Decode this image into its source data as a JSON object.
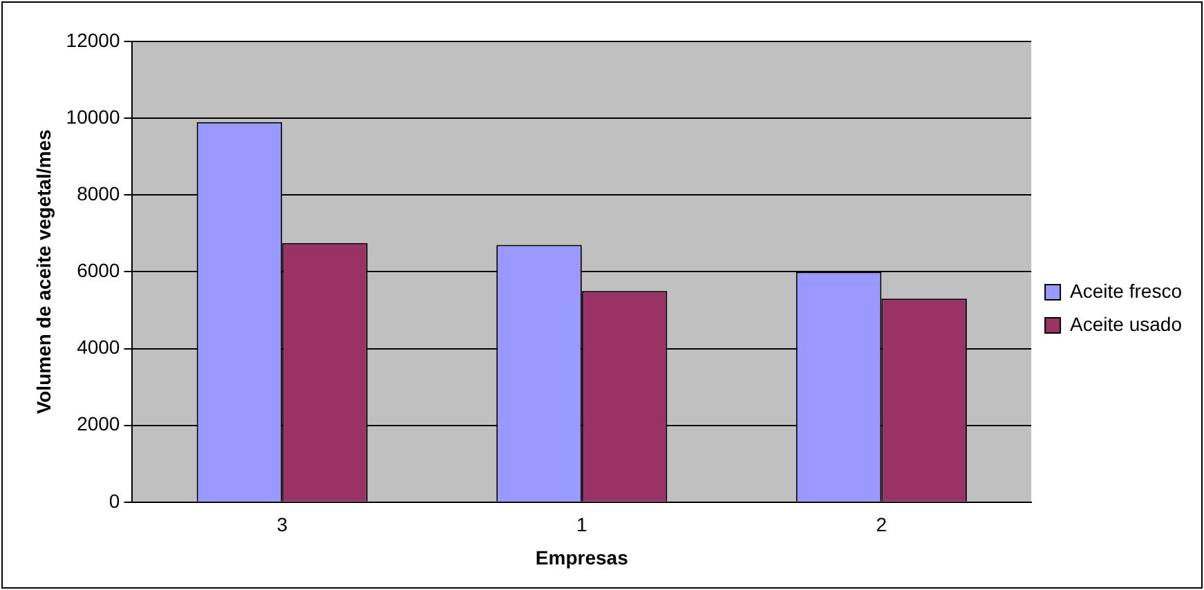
{
  "chart_data": {
    "type": "bar",
    "xlabel": "Empresas",
    "ylabel": "Volumen de aceite vegetal/mes",
    "categories": [
      "3",
      "1",
      "2"
    ],
    "series": [
      {
        "name": "Aceite fresco",
        "color": "#9999ff",
        "values": [
          9900,
          6700,
          6000
        ]
      },
      {
        "name": "Aceite usado",
        "color": "#993366",
        "values": [
          6750,
          5500,
          5300
        ]
      }
    ],
    "ylim": [
      0,
      12000
    ],
    "yticks": [
      0,
      2000,
      4000,
      6000,
      8000,
      10000,
      12000
    ],
    "grid": "y",
    "legend": "right"
  }
}
